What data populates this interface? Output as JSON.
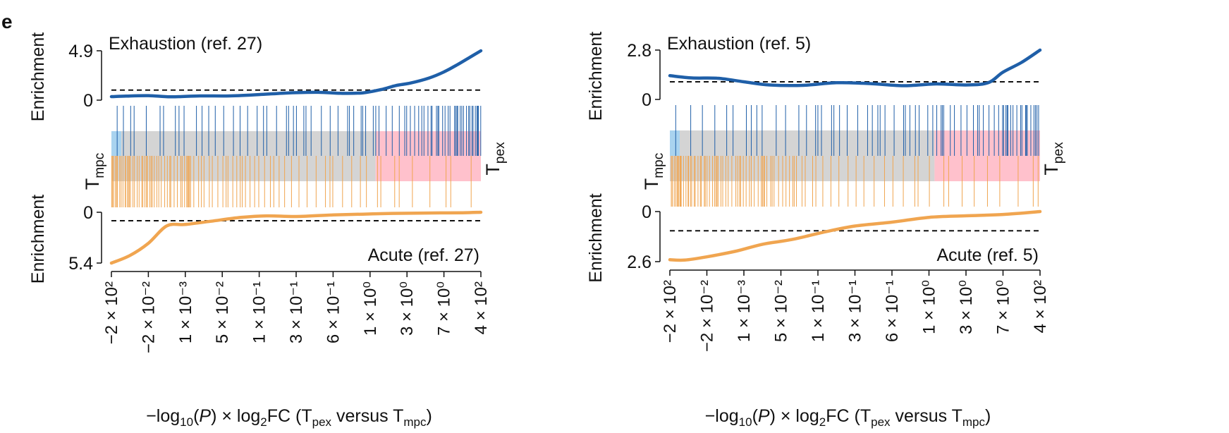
{
  "panel_letter": "e",
  "colors": {
    "blue": "#1f5fa8",
    "orange": "#f0a550",
    "light_blue": "#a9d3ef",
    "grey": "#d4d4d4",
    "pink": "#ffc1cc",
    "dashed": "#111111"
  },
  "chart_data": [
    {
      "type": "line",
      "panel": "left",
      "subscripts": {
        "tpex": "pex",
        "tmpc": "mpc",
        "log10": "10",
        "log2": "2"
      },
      "label_T": "T",
      "top": {
        "title": "Exhaustion (ref. 27)",
        "ylabel": "Enrichment",
        "ylim": [
          0,
          4.9
        ],
        "yticks": [
          "4.9",
          "0"
        ],
        "threshold": 1.0,
        "x": [
          0,
          0.04,
          0.1,
          0.16,
          0.24,
          0.32,
          0.4,
          0.48,
          0.56,
          0.62,
          0.68,
          0.73,
          0.77,
          0.81,
          0.86,
          0.9,
          0.94,
          0.97,
          1.0
        ],
        "y": [
          0.35,
          0.4,
          0.45,
          0.33,
          0.42,
          0.42,
          0.55,
          0.72,
          0.78,
          0.68,
          0.72,
          1.05,
          1.45,
          1.7,
          2.2,
          2.8,
          3.6,
          4.25,
          4.9
        ]
      },
      "bottom": {
        "title": "Acute (ref. 27)",
        "ylabel": "Enrichment",
        "ylim": [
          0,
          5.4
        ],
        "yticks": [
          "0",
          "5.4"
        ],
        "threshold": 0.9,
        "x": [
          0,
          0.05,
          0.1,
          0.15,
          0.2,
          0.27,
          0.35,
          0.42,
          0.5,
          0.6,
          0.68,
          0.76,
          0.85,
          0.95,
          1.0
        ],
        "y": [
          5.4,
          4.6,
          3.3,
          1.45,
          1.3,
          0.95,
          0.55,
          0.38,
          0.45,
          0.28,
          0.2,
          0.12,
          0.08,
          0.05,
          0.0
        ]
      },
      "band_split": 0.715,
      "xticks": [
        "−2 × 10²",
        "−2 × 10⁻²",
        "1 × 10⁻³",
        "5 × 10⁻²",
        "1 × 10⁻¹",
        "3 × 10⁻¹",
        "6 × 10⁻¹",
        "1 × 10⁰",
        "3 × 10⁰",
        "7 × 10⁰",
        "4 × 10²"
      ],
      "xlabel_parts": {
        "a": "−log",
        "b": "(",
        "c": "P",
        "d": ") × log",
        "e": "FC (T",
        "f": " versus T",
        "g": ")"
      }
    },
    {
      "type": "line",
      "panel": "right",
      "subscripts": {
        "tpex": "pex",
        "tmpc": "mpc",
        "log10": "10",
        "log2": "2"
      },
      "label_T": "T",
      "top": {
        "title": "Exhaustion (ref. 5)",
        "ylabel": "Enrichment",
        "ylim": [
          0,
          2.8
        ],
        "yticks": [
          "2.8",
          "0"
        ],
        "threshold": 1.0,
        "x": [
          0,
          0.06,
          0.13,
          0.2,
          0.27,
          0.36,
          0.45,
          0.54,
          0.63,
          0.72,
          0.8,
          0.86,
          0.9,
          0.95,
          1.0
        ],
        "y": [
          1.35,
          1.22,
          1.2,
          1.0,
          0.82,
          0.8,
          0.95,
          0.9,
          0.78,
          0.88,
          0.82,
          0.95,
          1.55,
          2.1,
          2.8
        ]
      },
      "bottom": {
        "title": "Acute (ref. 5)",
        "ylabel": "Enrichment",
        "ylim": [
          0,
          2.6
        ],
        "yticks": [
          "0",
          "2.6"
        ],
        "threshold": 1.0,
        "x": [
          0,
          0.04,
          0.1,
          0.18,
          0.25,
          0.33,
          0.42,
          0.5,
          0.6,
          0.7,
          0.8,
          0.9,
          1.0
        ],
        "y": [
          2.5,
          2.52,
          2.35,
          2.05,
          1.7,
          1.45,
          1.05,
          0.75,
          0.55,
          0.3,
          0.22,
          0.15,
          0.0
        ]
      },
      "band_split": 0.715,
      "xticks": [
        "−2 × 10²",
        "−2 × 10⁻²",
        "1 × 10⁻³",
        "5 × 10⁻²",
        "1 × 10⁻¹",
        "3 × 10⁻¹",
        "6 × 10⁻¹",
        "1 × 10⁰",
        "3 × 10⁰",
        "7 × 10⁰",
        "4 × 10²"
      ],
      "xlabel_parts": {
        "a": "−log",
        "b": "(",
        "c": "P",
        "d": ") × log",
        "e": "FC (T",
        "f": " versus T",
        "g": ")"
      }
    }
  ]
}
